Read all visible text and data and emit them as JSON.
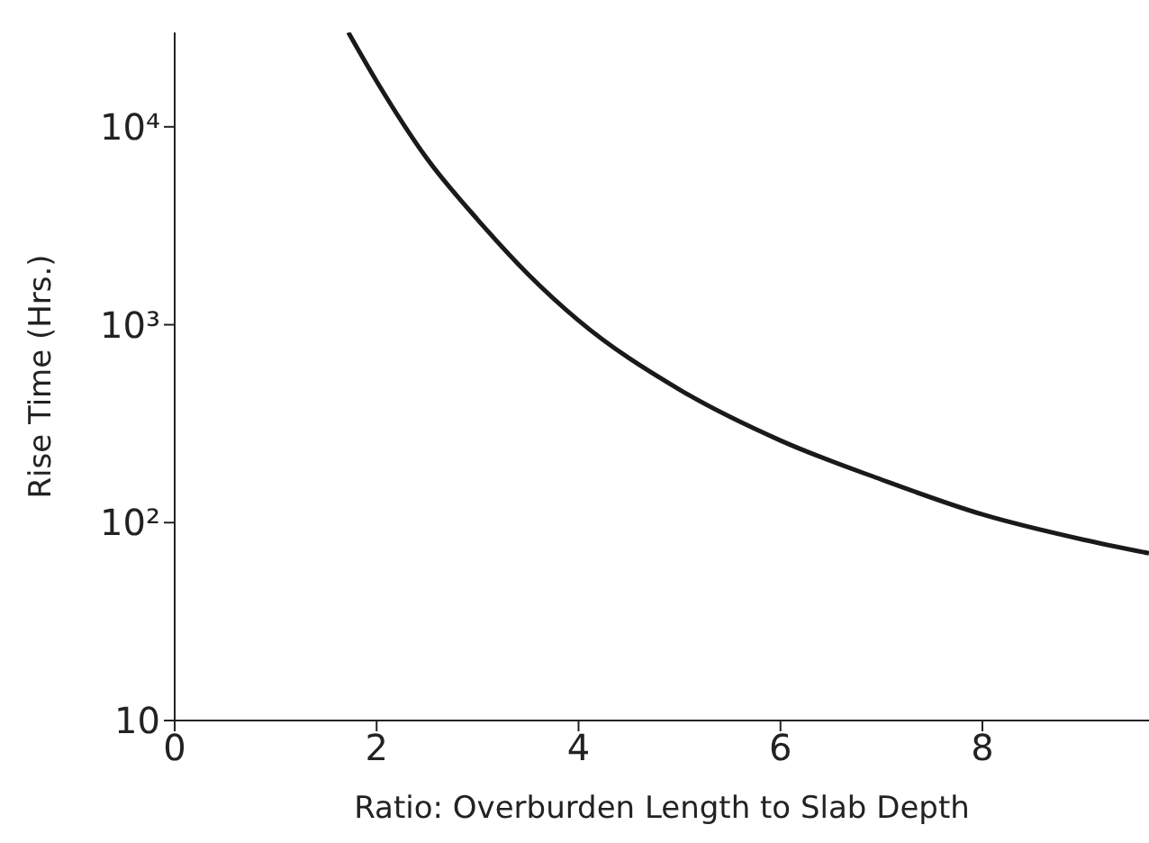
{
  "chart_data": {
    "type": "line",
    "xlabel": "Ratio: Overburden Length to Slab Depth",
    "ylabel": "Rise Time (Hrs.)",
    "x": [
      1.72,
      2,
      2.5,
      3,
      3.5,
      4,
      5,
      6,
      7,
      8,
      9,
      9.65
    ],
    "series": [
      {
        "color": "#1a1a1a",
        "values": [
          30000,
          17000,
          6900,
          3400,
          1800,
          1050,
          470,
          260,
          165,
          110,
          82,
          70
        ]
      }
    ],
    "xlim": [
      0,
      9.65
    ],
    "xticks": [
      0,
      2,
      4,
      6,
      8
    ],
    "ylim": [
      10,
      30000
    ],
    "yticks": [
      10,
      {
        "value": 100,
        "label": "10²"
      },
      {
        "value": 1000,
        "label": "10³"
      },
      {
        "value": 10000,
        "label": "10⁴"
      }
    ],
    "log": "y",
    "grid": false,
    "marker": "none",
    "line_style": "solid"
  }
}
